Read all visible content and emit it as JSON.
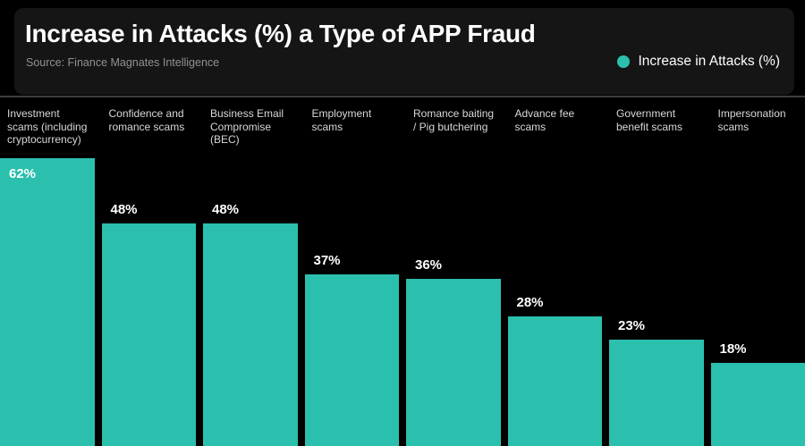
{
  "header": {
    "title": "Increase in Attacks (%) a Type of APP Fraud",
    "source": "Source: Finance Magnates Intelligence"
  },
  "legend": {
    "label": "Increase in Attacks (%)",
    "dot_color": "#2bbfae"
  },
  "chart_data": {
    "type": "bar",
    "title": "Increase in Attacks (%) a Type of APP Fraud",
    "source": "Source: Finance Magnates Intelligence",
    "categories": [
      "Investment scams (including cryptocurrency)",
      "Confidence and romance scams",
      "Business Email Compromise (BEC)",
      "Employment scams",
      "Romance baiting / Pig butchering",
      "Advance fee scams",
      "Government benefit scams",
      "Impersonation scams"
    ],
    "x_tick_labels": [
      "Investment\nscams (including\ncryptocurrency)",
      "Confidence and\nromance scams",
      "Business Email\nCompromise\n(BEC)",
      "Employment\nscams",
      "Romance baiting\n/ Pig butchering",
      "Advance fee\nscams",
      "Government\nbenefit scams",
      "Impersonation\nscams"
    ],
    "values": [
      62,
      48,
      48,
      37,
      36,
      28,
      23,
      18
    ],
    "value_labels": [
      "62%",
      "48%",
      "48%",
      "37%",
      "36%",
      "28%",
      "23%",
      "18%"
    ],
    "unit": "%",
    "series_name": "Increase in Attacks (%)",
    "bar_color": "#2bbfae",
    "background": "#000000",
    "legend_position": "top-right",
    "grid": false,
    "ylim": [
      0,
      62
    ],
    "xlabel": "",
    "ylabel": "Increase in Attacks (%)"
  }
}
